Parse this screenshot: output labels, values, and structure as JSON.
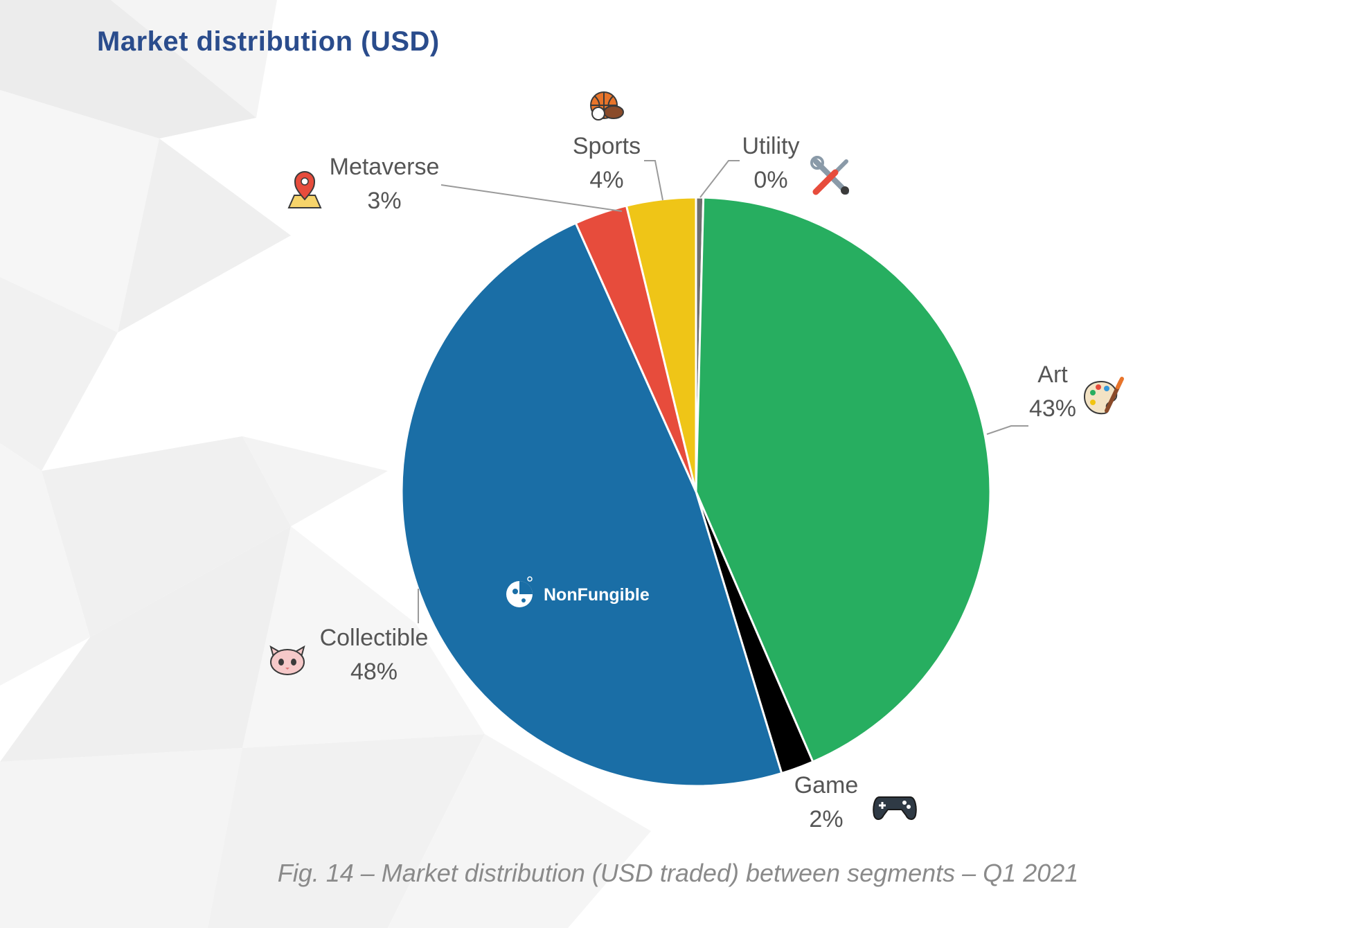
{
  "title": "Market distribution (USD)",
  "caption": "Fig. 14 – Market distribution (USD traded) between segments – Q1 2021",
  "watermark": "NonFungible",
  "chart_data": {
    "type": "pie",
    "title": "Market distribution (USD)",
    "slices": [
      {
        "label": "Utility",
        "value": 0.4,
        "display": "0%",
        "color": "#6f6f6f",
        "icon": "tools-icon"
      },
      {
        "label": "Art",
        "value": 43.1,
        "display": "43%",
        "color": "#27ae60",
        "icon": "palette-icon"
      },
      {
        "label": "Game",
        "value": 1.8,
        "display": "2%",
        "color": "#000000",
        "icon": "gamepad-icon"
      },
      {
        "label": "Collectible",
        "value": 48.0,
        "display": "48%",
        "color": "#1a6ea6",
        "icon": "cat-icon"
      },
      {
        "label": "Metaverse",
        "value": 2.9,
        "display": "3%",
        "color": "#e74c3c",
        "icon": "map-pin-icon"
      },
      {
        "label": "Sports",
        "value": 3.8,
        "display": "4%",
        "color": "#efc517",
        "icon": "sports-ball-icon"
      }
    ]
  }
}
